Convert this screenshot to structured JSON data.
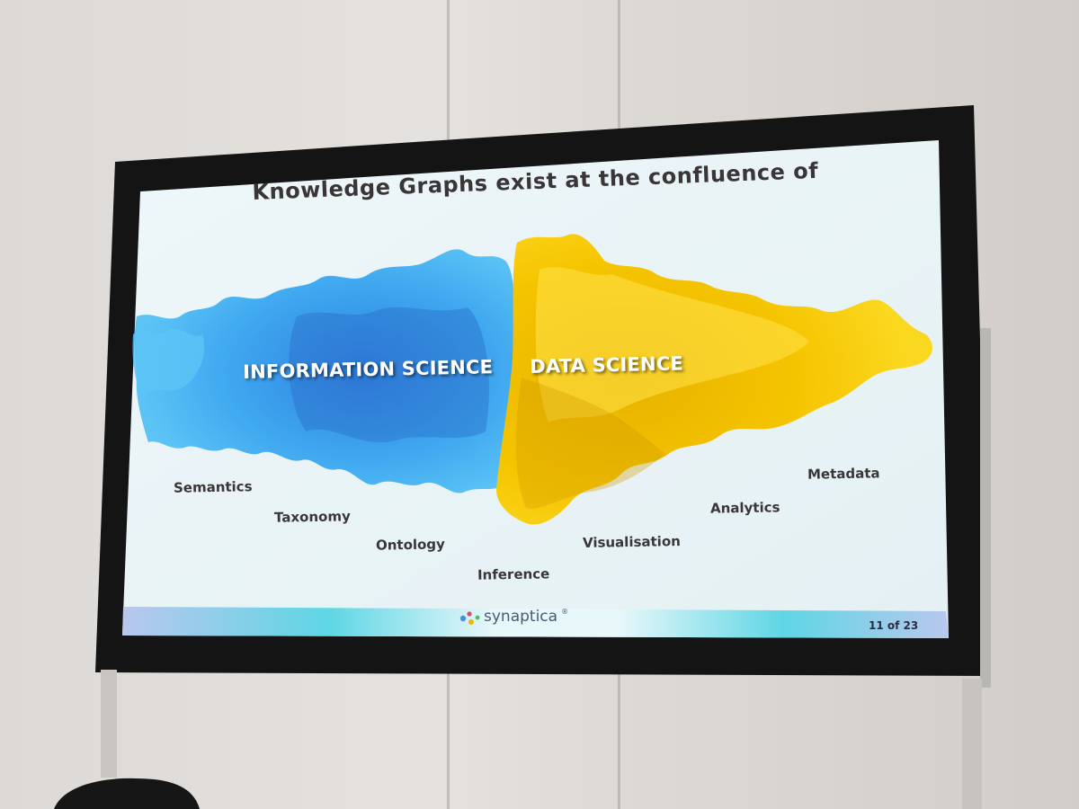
{
  "slide": {
    "title": "Knowledge Graphs exist at the confluence of",
    "left_label": "INFORMATION SCIENCE",
    "right_label": "DATA SCIENCE",
    "terms": {
      "semantics": "Semantics",
      "taxonomy": "Taxonomy",
      "ontology": "Ontology",
      "inference": "Inference",
      "visualisation": "Visualisation",
      "analytics": "Analytics",
      "metadata": "Metadata"
    },
    "brand": "synaptica",
    "brand_mark": "®",
    "page": "11 of 23"
  },
  "colors": {
    "info_ink": "#3fa8f0",
    "data_ink": "#f5c400",
    "slide_background": "#eaf4f7",
    "footer_band": "#5ed6e4",
    "text_dark": "#3a3638"
  }
}
